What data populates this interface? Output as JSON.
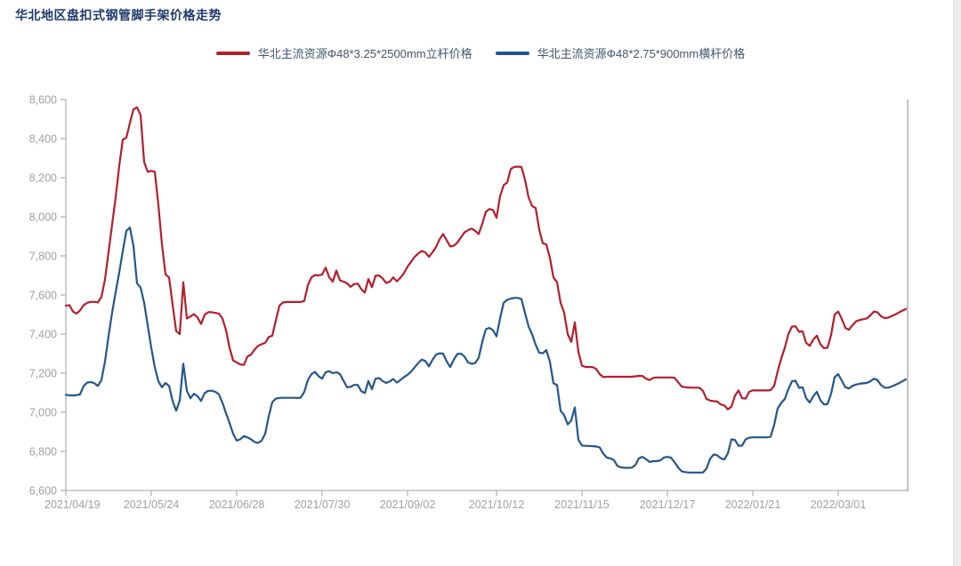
{
  "page": {
    "title": "华北地区盘扣式钢管脚手架价格走势"
  },
  "legend": [
    {
      "label": "华北主流资源Φ48*3.25*2500mm立杆价格",
      "color": "#b21f2c"
    },
    {
      "label": "华北主流资源Φ48*2.75*900mm横杆价格",
      "color": "#24568b"
    }
  ],
  "colors": {
    "title": "#1d3a6e",
    "legend_text": "#42566b",
    "axis_line": "#b3b3b3",
    "tick_label": "#a0a0a0",
    "right_border": "#c4c4c4",
    "series_red": "#b21f2c",
    "series_blue": "#24568b"
  },
  "chart_data": {
    "type": "line",
    "title": "华北地区盘扣式钢管脚手架价格走势",
    "ylabel": "",
    "xlabel": "",
    "ylim": [
      6600,
      8600
    ],
    "y_tick_step": 200,
    "grid": false,
    "legend_position": "top-center",
    "x_tick_labels": [
      "2021/04/19",
      "2021/05/24",
      "2021/06/28",
      "2021/07/30",
      "2021/09/02",
      "2021/10/12",
      "2021/11/15",
      "2021/12/17",
      "2022/01/21",
      "2022/03/01"
    ],
    "x_tick_indices": [
      0,
      24,
      48,
      72,
      96,
      121,
      145,
      169,
      193,
      217
    ],
    "series": [
      {
        "name": "华北主流资源Φ48*3.25*2500mm立杆价格",
        "color": "#b21f2c",
        "values": [
          7545,
          7548,
          7515,
          7505,
          7522,
          7548,
          7560,
          7565,
          7565,
          7562,
          7590,
          7680,
          7820,
          7960,
          8100,
          8260,
          8395,
          8405,
          8480,
          8550,
          8560,
          8520,
          8280,
          8230,
          8235,
          8230,
          8060,
          7860,
          7705,
          7690,
          7550,
          7415,
          7400,
          7665,
          7480,
          7490,
          7502,
          7485,
          7452,
          7498,
          7512,
          7512,
          7508,
          7505,
          7480,
          7420,
          7330,
          7265,
          7255,
          7245,
          7242,
          7285,
          7295,
          7320,
          7340,
          7348,
          7355,
          7385,
          7392,
          7470,
          7545,
          7562,
          7564,
          7564,
          7564,
          7564,
          7564,
          7570,
          7650,
          7690,
          7702,
          7700,
          7705,
          7740,
          7690,
          7668,
          7725,
          7675,
          7668,
          7660,
          7642,
          7656,
          7658,
          7630,
          7612,
          7682,
          7640,
          7698,
          7700,
          7685,
          7662,
          7668,
          7690,
          7670,
          7688,
          7712,
          7745,
          7770,
          7795,
          7812,
          7825,
          7818,
          7795,
          7818,
          7845,
          7885,
          7912,
          7880,
          7848,
          7852,
          7868,
          7895,
          7920,
          7932,
          7940,
          7928,
          7912,
          7965,
          8025,
          8040,
          8035,
          7995,
          8105,
          8162,
          8175,
          8245,
          8255,
          8257,
          8255,
          8190,
          8100,
          8055,
          8045,
          7935,
          7865,
          7858,
          7790,
          7690,
          7665,
          7560,
          7510,
          7400,
          7360,
          7460,
          7310,
          7238,
          7232,
          7232,
          7231,
          7222,
          7195,
          7180,
          7182,
          7182,
          7182,
          7182,
          7182,
          7182,
          7182,
          7182,
          7184,
          7186,
          7186,
          7172,
          7165,
          7176,
          7178,
          7178,
          7178,
          7178,
          7178,
          7177,
          7155,
          7132,
          7128,
          7127,
          7126,
          7126,
          7126,
          7110,
          7068,
          7060,
          7057,
          7055,
          7040,
          7035,
          7015,
          7028,
          7085,
          7112,
          7072,
          7070,
          7105,
          7112,
          7112,
          7112,
          7112,
          7112,
          7113,
          7135,
          7210,
          7275,
          7330,
          7400,
          7438,
          7440,
          7412,
          7414,
          7355,
          7340,
          7372,
          7392,
          7348,
          7328,
          7330,
          7395,
          7500,
          7515,
          7478,
          7432,
          7422,
          7445,
          7465,
          7472,
          7476,
          7480,
          7495,
          7515,
          7512,
          7492,
          7482,
          7484,
          7492,
          7500,
          7510,
          7520,
          7528
        ]
      },
      {
        "name": "华北主流资源Φ48*2.75*900mm横杆价格",
        "color": "#24568b",
        "values": [
          7090,
          7087,
          7086,
          7088,
          7092,
          7135,
          7152,
          7155,
          7148,
          7135,
          7165,
          7260,
          7390,
          7510,
          7615,
          7715,
          7825,
          7928,
          7945,
          7850,
          7660,
          7638,
          7560,
          7445,
          7330,
          7230,
          7158,
          7128,
          7150,
          7135,
          7058,
          7008,
          7060,
          7248,
          7110,
          7072,
          7095,
          7082,
          7058,
          7098,
          7110,
          7110,
          7105,
          7092,
          7048,
          6995,
          6945,
          6890,
          6855,
          6862,
          6878,
          6872,
          6862,
          6848,
          6843,
          6855,
          6890,
          6980,
          7052,
          7070,
          7073,
          7074,
          7074,
          7074,
          7074,
          7073,
          7075,
          7105,
          7165,
          7195,
          7207,
          7185,
          7172,
          7205,
          7210,
          7200,
          7205,
          7196,
          7162,
          7128,
          7130,
          7140,
          7140,
          7108,
          7098,
          7160,
          7118,
          7172,
          7175,
          7160,
          7150,
          7158,
          7170,
          7152,
          7165,
          7180,
          7192,
          7208,
          7230,
          7252,
          7270,
          7262,
          7235,
          7268,
          7295,
          7302,
          7300,
          7260,
          7232,
          7270,
          7298,
          7300,
          7285,
          7255,
          7248,
          7252,
          7278,
          7360,
          7425,
          7432,
          7420,
          7388,
          7480,
          7560,
          7575,
          7582,
          7585,
          7585,
          7580,
          7508,
          7440,
          7398,
          7345,
          7305,
          7302,
          7318,
          7258,
          7148,
          7140,
          7008,
          6985,
          6938,
          6958,
          7025,
          6860,
          6830,
          6828,
          6828,
          6827,
          6825,
          6820,
          6788,
          6768,
          6764,
          6755,
          6725,
          6718,
          6716,
          6716,
          6717,
          6730,
          6765,
          6772,
          6760,
          6746,
          6750,
          6750,
          6754,
          6768,
          6772,
          6768,
          6745,
          6718,
          6698,
          6694,
          6692,
          6692,
          6692,
          6692,
          6692,
          6712,
          6762,
          6784,
          6780,
          6765,
          6758,
          6790,
          6862,
          6858,
          6828,
          6830,
          6862,
          6870,
          6872,
          6872,
          6872,
          6872,
          6872,
          6875,
          6935,
          7020,
          7048,
          7068,
          7118,
          7158,
          7162,
          7125,
          7128,
          7072,
          7050,
          7082,
          7105,
          7062,
          7040,
          7042,
          7095,
          7180,
          7195,
          7162,
          7128,
          7122,
          7135,
          7142,
          7146,
          7148,
          7150,
          7158,
          7172,
          7165,
          7140,
          7126,
          7126,
          7132,
          7140,
          7148,
          7158,
          7168
        ]
      }
    ]
  }
}
